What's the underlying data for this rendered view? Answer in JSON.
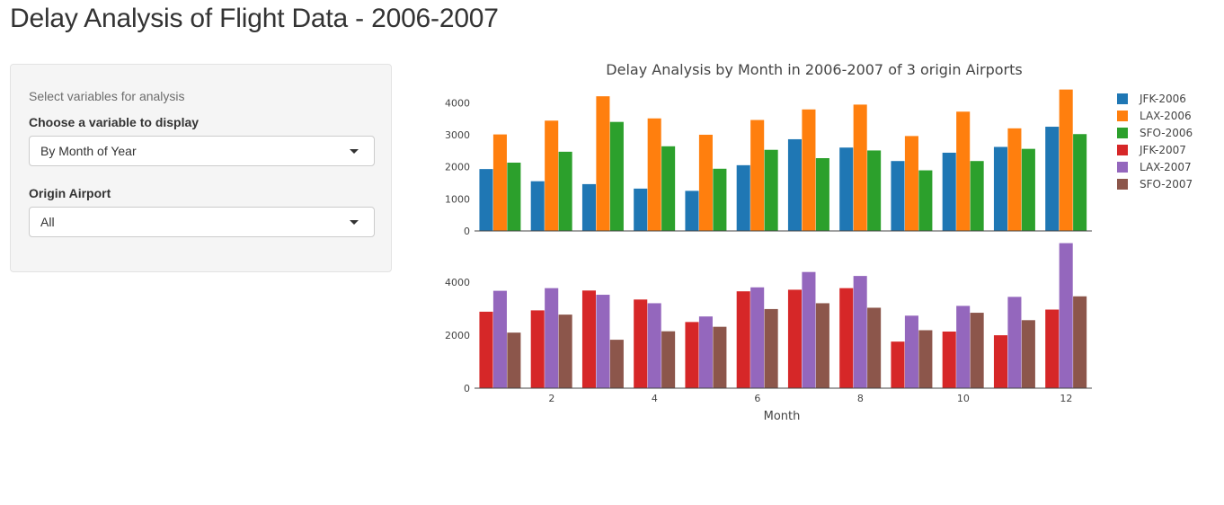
{
  "page": {
    "title": "Delay Analysis of Flight Data - 2006-2007"
  },
  "sidebar": {
    "heading": "Select variables for analysis",
    "variable_label": "Choose a variable to display",
    "variable_value": "By Month of Year",
    "airport_label": "Origin Airport",
    "airport_value": "All"
  },
  "chart_data": {
    "type": "bar",
    "title": "Delay Analysis by Month in 2006-2007 of 3 origin Airports",
    "xlabel": "Month",
    "x": [
      1,
      2,
      3,
      4,
      5,
      6,
      7,
      8,
      9,
      10,
      11,
      12
    ],
    "x_ticks": [
      2,
      4,
      6,
      8,
      10,
      12
    ],
    "legend_position": "top-right",
    "panels": [
      {
        "ylim": [
          0,
          4400
        ],
        "y_ticks": [
          0,
          1000,
          2000,
          3000,
          4000
        ],
        "series": [
          {
            "name": "JFK-2006",
            "color": "#1f77b4",
            "values": [
              1930,
              1550,
              1460,
              1320,
              1250,
              2050,
              2860,
              2600,
              2180,
              2440,
              2620,
              3250
            ]
          },
          {
            "name": "LAX-2006",
            "color": "#ff7f0e",
            "values": [
              3010,
              3440,
              4200,
              3510,
              3000,
              3460,
              3790,
              3940,
              2960,
              3720,
              3200,
              4410
            ]
          },
          {
            "name": "SFO-2006",
            "color": "#2ca02c",
            "values": [
              2130,
              2470,
              3400,
              2640,
              1940,
              2530,
              2270,
              2510,
              1890,
              2180,
              2560,
              3020
            ]
          }
        ]
      },
      {
        "ylim": [
          0,
          5500
        ],
        "y_ticks": [
          0,
          2000,
          4000
        ],
        "series": [
          {
            "name": "JFK-2007",
            "color": "#d62728",
            "values": [
              2890,
              2940,
              3690,
              3350,
              2500,
              3660,
              3720,
              3780,
              1760,
              2140,
              2000,
              2970
            ]
          },
          {
            "name": "LAX-2007",
            "color": "#9467bd",
            "values": [
              3680,
              3780,
              3530,
              3210,
              2710,
              3810,
              4390,
              4240,
              2740,
              3110,
              3450,
              5480
            ]
          },
          {
            "name": "SFO-2007",
            "color": "#8c564b",
            "values": [
              2100,
              2780,
              1830,
              2150,
              2320,
              2990,
              3210,
              3040,
              2190,
              2850,
              2570,
              3470
            ]
          }
        ]
      }
    ]
  }
}
